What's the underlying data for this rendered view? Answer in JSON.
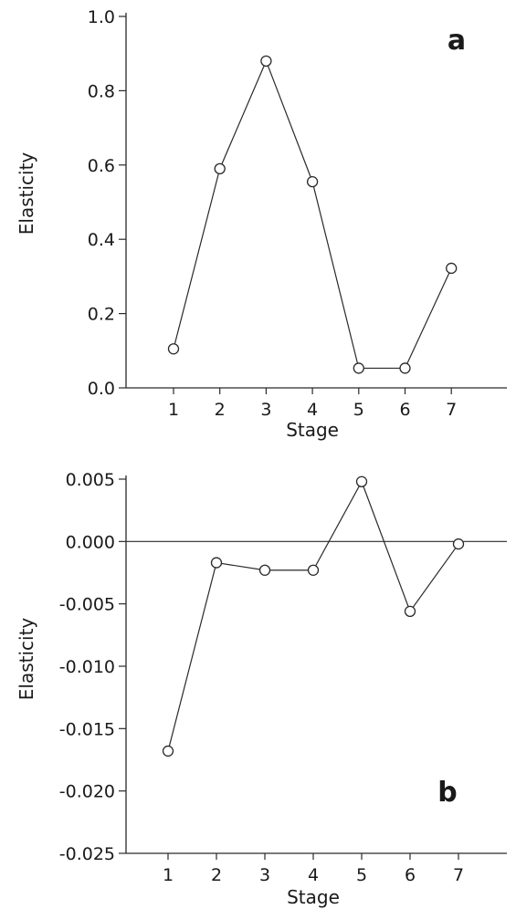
{
  "chart_data": [
    {
      "type": "line",
      "panel": "a",
      "xlabel": "Stage",
      "ylabel": "Elasticity",
      "xlim": [
        0,
        8
      ],
      "ylim": [
        0.0,
        1.0
      ],
      "x_ticks": [
        1,
        2,
        3,
        4,
        5,
        6,
        7
      ],
      "y_ticks": [
        0.0,
        0.2,
        0.4,
        0.6,
        0.8,
        1.0
      ],
      "y_tick_labels": [
        "0.0",
        "0.2",
        "0.4",
        "0.6",
        "0.8",
        "1.0"
      ],
      "zero_line": false,
      "marker": "open-circle",
      "series": [
        {
          "x": [
            1,
            2,
            3,
            4,
            5,
            6,
            7
          ],
          "values": [
            0.105,
            0.59,
            0.88,
            0.555,
            0.053,
            0.053,
            0.322
          ]
        }
      ]
    },
    {
      "type": "line",
      "panel": "b",
      "xlabel": "Stage",
      "ylabel": "Elasticity",
      "xlim": [
        0,
        8
      ],
      "ylim": [
        -0.025,
        0.005
      ],
      "x_ticks": [
        1,
        2,
        3,
        4,
        5,
        6,
        7
      ],
      "y_ticks": [
        -0.025,
        -0.02,
        -0.015,
        -0.01,
        -0.005,
        0.0,
        0.005
      ],
      "y_tick_labels": [
        "-0.025",
        "-0.020",
        "-0.015",
        "-0.010",
        "-0.005",
        "0.000",
        "0.005"
      ],
      "zero_line": true,
      "marker": "open-circle",
      "series": [
        {
          "x": [
            1,
            2,
            3,
            4,
            5,
            6,
            7
          ],
          "values": [
            -0.0168,
            -0.0017,
            -0.0023,
            -0.0023,
            0.0048,
            -0.0056,
            -0.0002
          ]
        }
      ]
    }
  ]
}
